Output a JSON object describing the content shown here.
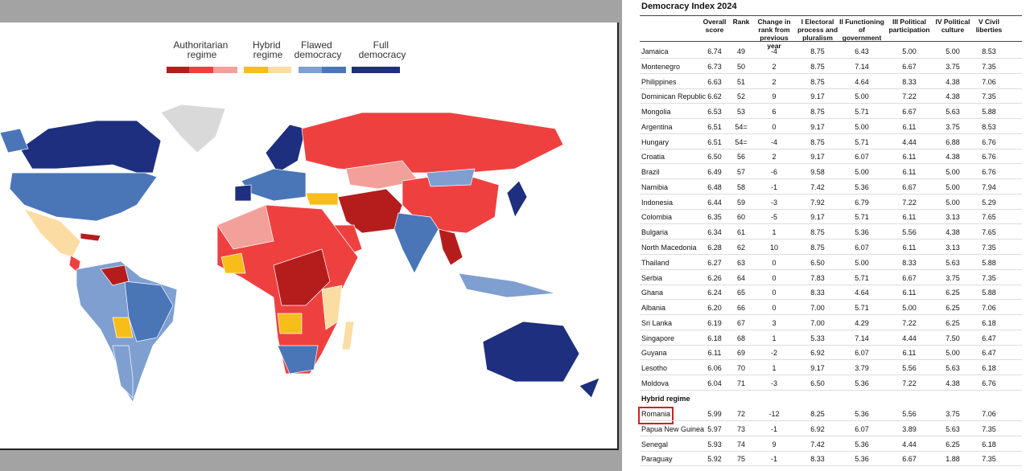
{
  "legend": {
    "groups": [
      {
        "label": "Authoritarian regime"
      },
      {
        "label": "Hybrid regime"
      },
      {
        "label": "Flawed democracy"
      },
      {
        "label": "Full democracy"
      }
    ]
  },
  "table": {
    "title": "Democracy Index 2024",
    "columns": [
      "Overall score",
      "Rank",
      "Change in rank from previous year",
      "I Electoral process and pluralism",
      "II Functioning of government",
      "III Political participation",
      "IV Political culture",
      "V Civil liberties"
    ],
    "rows": [
      [
        "Jamaica",
        "6.74",
        "49",
        "-4",
        "8.75",
        "6.43",
        "5.00",
        "5.00",
        "8.53"
      ],
      [
        "Montenegro",
        "6.73",
        "50",
        "2",
        "8.75",
        "7.14",
        "6.67",
        "3.75",
        "7.35"
      ],
      [
        "Philippines",
        "6.63",
        "51",
        "2",
        "8.75",
        "4.64",
        "8.33",
        "4.38",
        "7.06"
      ],
      [
        "Dominican Republic",
        "6.62",
        "52",
        "9",
        "9.17",
        "5.00",
        "7.22",
        "4.38",
        "7.35"
      ],
      [
        "Mongolia",
        "6.53",
        "53",
        "6",
        "8.75",
        "5.71",
        "6.67",
        "5.63",
        "5.88"
      ],
      [
        "Argentina",
        "6.51",
        "54=",
        "0",
        "9.17",
        "5.00",
        "6.11",
        "3.75",
        "8.53"
      ],
      [
        "Hungary",
        "6.51",
        "54=",
        "-4",
        "8.75",
        "5.71",
        "4.44",
        "6.88",
        "6.76"
      ],
      [
        "Croatia",
        "6.50",
        "56",
        "2",
        "9.17",
        "6.07",
        "6.11",
        "4.38",
        "6.76"
      ],
      [
        "Brazil",
        "6.49",
        "57",
        "-6",
        "9.58",
        "5.00",
        "6.11",
        "5.00",
        "6.76"
      ],
      [
        "Namibia",
        "6.48",
        "58",
        "-1",
        "7.42",
        "5.36",
        "6.67",
        "5.00",
        "7.94"
      ],
      [
        "Indonesia",
        "6.44",
        "59",
        "-3",
        "7.92",
        "6.79",
        "7.22",
        "5.00",
        "5.29"
      ],
      [
        "Colombia",
        "6.35",
        "60",
        "-5",
        "9.17",
        "5.71",
        "6.11",
        "3.13",
        "7.65"
      ],
      [
        "Bulgaria",
        "6.34",
        "61",
        "1",
        "8.75",
        "5.36",
        "5.56",
        "4.38",
        "7.65"
      ],
      [
        "North Macedonia",
        "6.28",
        "62",
        "10",
        "8.75",
        "6.07",
        "6.11",
        "3.13",
        "7.35"
      ],
      [
        "Thailand",
        "6.27",
        "63",
        "0",
        "6.50",
        "5.00",
        "8.33",
        "5.63",
        "5.88"
      ],
      [
        "Serbia",
        "6.26",
        "64",
        "0",
        "7.83",
        "5.71",
        "6.67",
        "3.75",
        "7.35"
      ],
      [
        "Ghana",
        "6.24",
        "65",
        "0",
        "8.33",
        "4.64",
        "6.11",
        "6.25",
        "5.88"
      ],
      [
        "Albania",
        "6.20",
        "66",
        "0",
        "7.00",
        "5.71",
        "5.00",
        "6.25",
        "7.06"
      ],
      [
        "Sri Lanka",
        "6.19",
        "67",
        "3",
        "7.00",
        "4.29",
        "7.22",
        "6.25",
        "6.18"
      ],
      [
        "Singapore",
        "6.18",
        "68",
        "1",
        "5.33",
        "7.14",
        "4.44",
        "7.50",
        "6.47"
      ],
      [
        "Guyana",
        "6.11",
        "69",
        "-2",
        "6.92",
        "6.07",
        "6.11",
        "5.00",
        "6.47"
      ],
      [
        "Lesotho",
        "6.06",
        "70",
        "1",
        "9.17",
        "3.79",
        "5.56",
        "5.63",
        "6.18"
      ],
      [
        "Moldova",
        "6.04",
        "71",
        "-3",
        "6.50",
        "5.36",
        "7.22",
        "4.38",
        "6.76"
      ]
    ],
    "section": "Hybrid regime",
    "hybrid_rows": [
      [
        "Romania",
        "5.99",
        "72",
        "-12",
        "8.25",
        "5.36",
        "5.56",
        "3.75",
        "7.06"
      ],
      [
        "Papua New Guinea",
        "5.97",
        "73",
        "-1",
        "6.92",
        "6.07",
        "3.89",
        "5.63",
        "7.35"
      ],
      [
        "Senegal",
        "5.93",
        "74",
        "9",
        "7.42",
        "5.36",
        "4.44",
        "6.25",
        "6.18"
      ],
      [
        "Paraguay",
        "5.92",
        "75",
        "-1",
        "8.33",
        "5.36",
        "6.67",
        "1.88",
        "7.35"
      ]
    ]
  }
}
